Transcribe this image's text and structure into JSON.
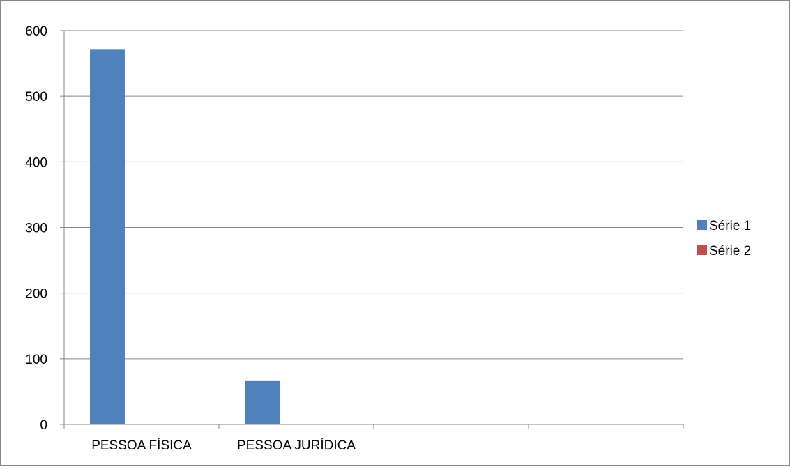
{
  "chart_data": {
    "type": "bar",
    "categories": [
      "PESSOA FÍSICA",
      "PESSOA JURÍDICA",
      "",
      ""
    ],
    "series": [
      {
        "name": "Série 1",
        "color": "#4f81bd",
        "values": [
          571,
          66,
          null,
          null
        ]
      },
      {
        "name": "Série 2",
        "color": "#c0504d",
        "values": [
          null,
          null,
          null,
          null
        ]
      }
    ],
    "y_ticks": [
      0,
      100,
      200,
      300,
      400,
      500,
      600
    ],
    "ylim": [
      0,
      600
    ],
    "grid": true,
    "legend": "right",
    "title": "",
    "xlabel": "",
    "ylabel": ""
  }
}
